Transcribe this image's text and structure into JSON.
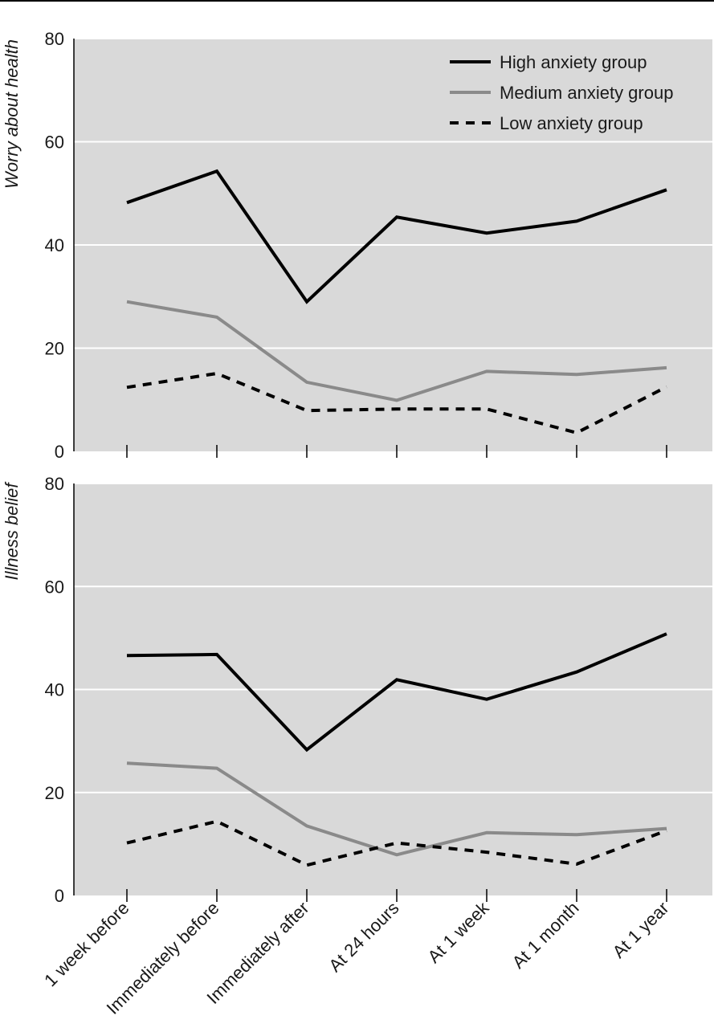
{
  "chart_data": {
    "type": "line",
    "categories": [
      "1 week before",
      "Immediately before",
      "Immediately after",
      "At 24 hours",
      "At 1 week",
      "At 1 month",
      "At 1 year"
    ],
    "legend": {
      "position": "top-right",
      "entries": [
        {
          "label": "High anxiety group",
          "color": "#000000",
          "style": "solid"
        },
        {
          "label": "Medium anxiety group",
          "color": "#8a8a8a",
          "style": "solid"
        },
        {
          "label": "Low anxiety group",
          "color": "#000000",
          "style": "dashed"
        }
      ]
    },
    "panels": [
      {
        "ylabel": "Worry about health",
        "ylim": [
          0,
          80
        ],
        "yticks": [
          0,
          20,
          40,
          60,
          80
        ],
        "series": [
          {
            "name": "High anxiety group",
            "color": "#000000",
            "style": "solid",
            "values": [
              48.2,
              54.3,
              29.0,
              45.4,
              42.3,
              44.6,
              50.7
            ]
          },
          {
            "name": "Medium anxiety group",
            "color": "#8a8a8a",
            "style": "solid",
            "values": [
              29.0,
              26.0,
              13.4,
              9.9,
              15.5,
              14.9,
              16.2
            ]
          },
          {
            "name": "Low anxiety group",
            "color": "#000000",
            "style": "dashed",
            "values": [
              12.4,
              15.1,
              7.9,
              8.2,
              8.2,
              3.6,
              12.5
            ]
          }
        ]
      },
      {
        "ylabel": "Illness belief",
        "ylim": [
          0,
          80
        ],
        "yticks": [
          0,
          20,
          40,
          60,
          80
        ],
        "series": [
          {
            "name": "High anxiety group",
            "color": "#000000",
            "style": "solid",
            "values": [
              46.6,
              46.8,
              28.3,
              41.9,
              38.1,
              43.4,
              50.8
            ]
          },
          {
            "name": "Medium anxiety group",
            "color": "#8a8a8a",
            "style": "solid",
            "values": [
              25.7,
              24.7,
              13.5,
              7.9,
              12.2,
              11.8,
              13.0
            ]
          },
          {
            "name": "Low anxiety group",
            "color": "#000000",
            "style": "dashed",
            "values": [
              10.2,
              14.4,
              5.9,
              10.2,
              8.4,
              6.1,
              12.6
            ]
          }
        ]
      }
    ],
    "background_color": "#d9d9d9",
    "grid_color": "#ffffff",
    "grid": true
  }
}
